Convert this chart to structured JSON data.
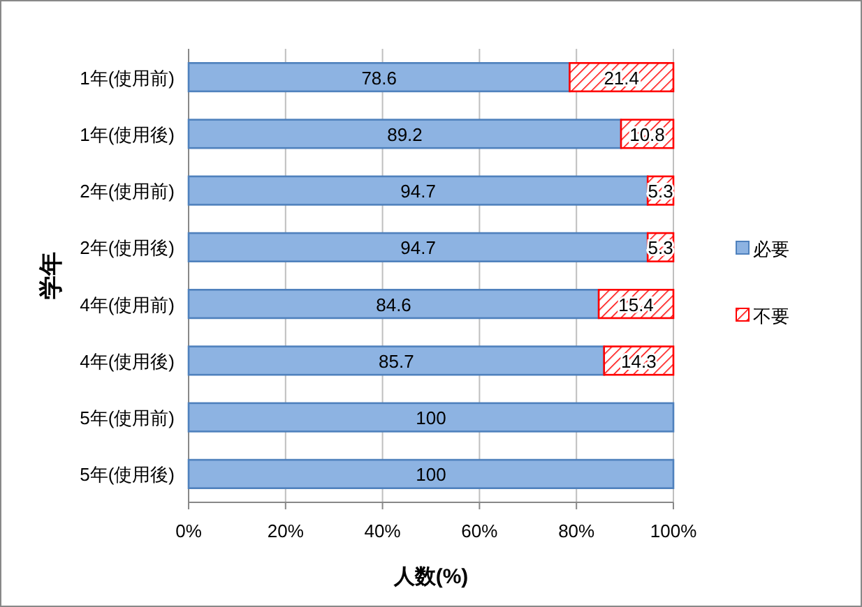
{
  "chart_data": {
    "type": "bar",
    "orientation": "horizontal",
    "stacked": true,
    "categories": [
      "1年(使用前)",
      "1年(使用後)",
      "2年(使用前)",
      "2年(使用後)",
      "4年(使用前)",
      "4年(使用後)",
      "5年(使用前)",
      "5年(使用後)"
    ],
    "series": [
      {
        "name": "必要",
        "color": "#8db3e2",
        "values": [
          78.6,
          89.2,
          94.7,
          94.7,
          84.6,
          85.7,
          100,
          100
        ],
        "value_labels": [
          "78.6",
          "89.2",
          "94.7",
          "94.7",
          "84.6",
          "85.7",
          "100",
          "100"
        ]
      },
      {
        "name": "不要",
        "color": "#ff0000",
        "values": [
          21.4,
          10.8,
          5.3,
          5.3,
          15.4,
          14.3,
          0,
          0
        ],
        "value_labels": [
          "21.4",
          "10.8",
          "5.3",
          "5.3",
          "15.4",
          "14.3",
          null,
          null
        ]
      }
    ],
    "xlim": [
      0,
      100
    ],
    "xticks": [
      {
        "value": 0,
        "label": "0%"
      },
      {
        "value": 20,
        "label": "20%"
      },
      {
        "value": 40,
        "label": "40%"
      },
      {
        "value": 60,
        "label": "60%"
      },
      {
        "value": 80,
        "label": "80%"
      },
      {
        "value": 100,
        "label": "100%"
      }
    ],
    "xlabel": "人数(%)",
    "ylabel": "学年",
    "grid": "x",
    "legend": "right"
  }
}
